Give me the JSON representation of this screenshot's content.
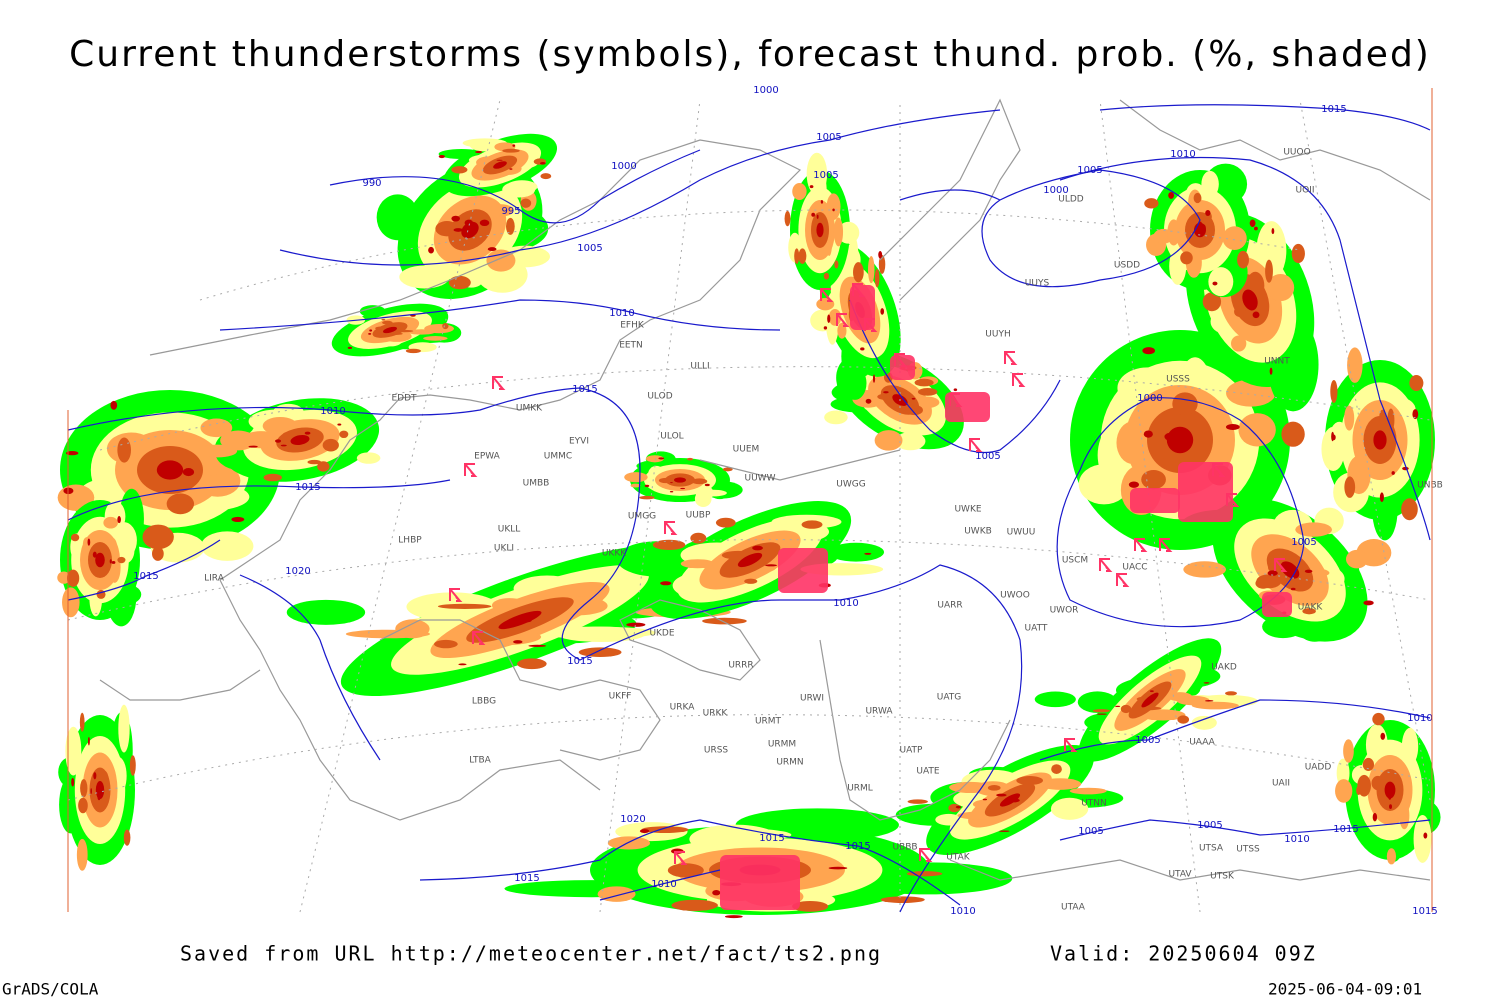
{
  "title": "Current thunderstorms (symbols), forecast thund. prob. (%, shaded)",
  "footer": {
    "source": "Saved from URL http://meteocenter.net/fact/ts2.png",
    "valid": "Valid: 20250604 09Z",
    "software": "GrADS/COLA",
    "timestamp": "2025-06-04-09:01"
  },
  "isobar_labels": [
    "990",
    "995",
    "1000",
    "1005",
    "1005",
    "1005",
    "1000",
    "1010",
    "1015",
    "1010",
    "1015",
    "1015",
    "1020",
    "1015",
    "1010",
    "1005",
    "1000",
    "1005",
    "1010",
    "1015",
    "1000",
    "1005",
    "1005",
    "1010",
    "1005",
    "1005",
    "1010",
    "1015",
    "1020",
    "1015",
    "1010",
    "1015",
    "1010",
    "1015",
    "1015"
  ],
  "stations": [
    "ULDD",
    "UUYS",
    "USDD",
    "UUYH",
    "EFHK",
    "EETN",
    "ULLI",
    "ULOL",
    "ULOD",
    "UMKK",
    "EYVI",
    "UMMC",
    "EPWA",
    "UMBB",
    "UKLL",
    "UKLI",
    "LHBP",
    "LIRA",
    "UUEM",
    "UUWW",
    "UWGG",
    "UWKE",
    "UWKB",
    "UWUU",
    "UWOO",
    "UWOR",
    "UATT",
    "UARR",
    "UKKK",
    "UMGG",
    "UUBP",
    "UKDE",
    "URRR",
    "UKFF",
    "URKA",
    "URKK",
    "URMT",
    "URMM",
    "URMN",
    "URSS",
    "URWI",
    "URWA",
    "UATG",
    "UATP",
    "UATE",
    "URML",
    "UBBB",
    "UTAK",
    "UTNN",
    "UTSA",
    "UTSS",
    "UTAV",
    "UTSK",
    "UTAA",
    "LTBA",
    "LBBG",
    "UAKK",
    "UAKD",
    "UADD",
    "UAII",
    "UAAA",
    "UNNT",
    "USSS",
    "USCM",
    "UUOO",
    "UOII",
    "UNBB",
    "EDDT",
    "UACC"
  ]
}
